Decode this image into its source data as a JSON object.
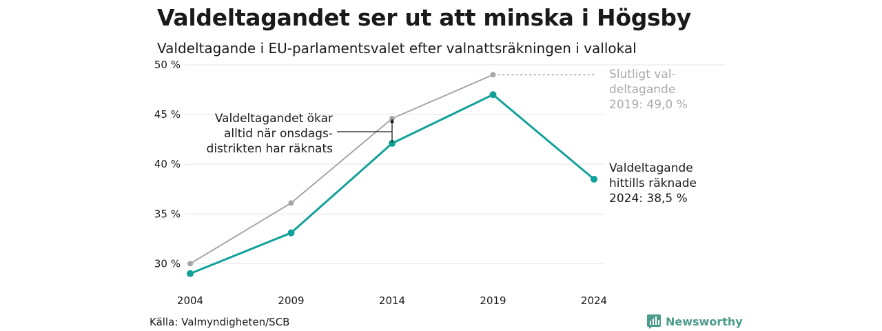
{
  "title": "Valdeltagandet ser ut att minska i Högsby",
  "subtitle": "Valdeltagande i EU-parlamentsvalet efter valnattsräkningen i vallokal",
  "source": "Källa: Valmyndigheten/SCB",
  "brand": "Newsworthy",
  "colors": {
    "counted": "#12a199",
    "final": "#a6a6a6",
    "grid": "#e4e4e4"
  },
  "chart_data": {
    "type": "line",
    "x": [
      "2004",
      "2009",
      "2014",
      "2019",
      "2024"
    ],
    "series": [
      {
        "values": [
          29.0,
          33.1,
          42.1,
          47.0,
          38.5
        ]
      },
      {
        "values": [
          30.0,
          36.1,
          44.6,
          49.0,
          null
        ]
      }
    ],
    "ylim": [
      28.5,
      50
    ],
    "yticks": [
      30,
      35,
      40,
      45,
      50
    ],
    "yticks_labels": [
      "30 %",
      "35 %",
      "40 %",
      "45 %",
      "50 %"
    ],
    "grid": true,
    "annotations": {
      "final_2019": [
        "Slutligt val-",
        "deltagande",
        "2019: 49,0 %"
      ],
      "counted_2024": [
        "Valdeltagande",
        "hittills räknade",
        "2024: 38,5 %"
      ],
      "note_2014": [
        "Valdeltagandet ökar",
        "alltid när onsdags-",
        "distrikten har räknats"
      ]
    }
  }
}
